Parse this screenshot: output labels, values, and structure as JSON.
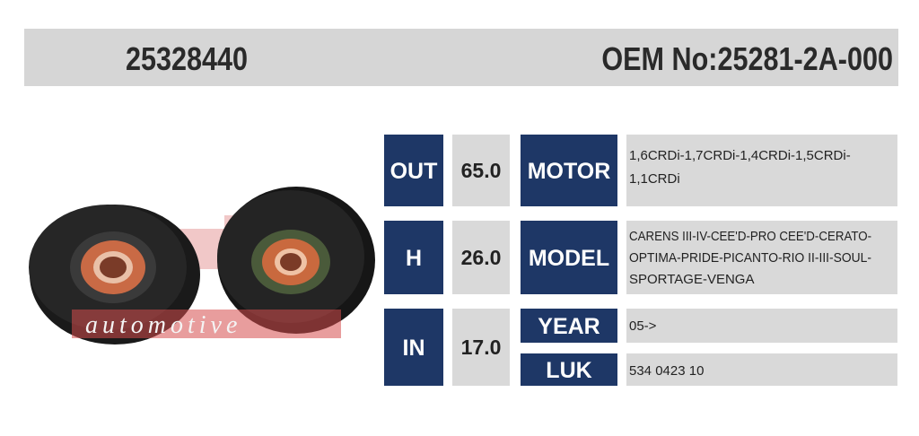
{
  "header": {
    "part_number": "25328440",
    "oem": "OEM No:25281-2A-000"
  },
  "watermark": {
    "text": "automotive"
  },
  "specs": [
    {
      "label": "OUT",
      "value": "65.0"
    },
    {
      "label": "H",
      "value": "26.0"
    },
    {
      "label": "IN",
      "value": "17.0"
    }
  ],
  "info": [
    {
      "label": "MOTOR",
      "lines": [
        "1,6CRDi-1,7CRDi-1,4CRDi-1,5CRDi-",
        "1,1CRDi"
      ]
    },
    {
      "label": "MODEL",
      "lines": [
        "CARENS III-IV-CEE'D-PRO CEE'D-CERATO-",
        "OPTIMA-PRIDE-PICANTO-RIO II-III-SOUL-",
        "SPORTAGE-VENGA"
      ]
    },
    {
      "label": "YEAR",
      "lines": [
        "05->"
      ]
    },
    {
      "label": "LUK",
      "lines": [
        "534 0423 10"
      ]
    }
  ]
}
